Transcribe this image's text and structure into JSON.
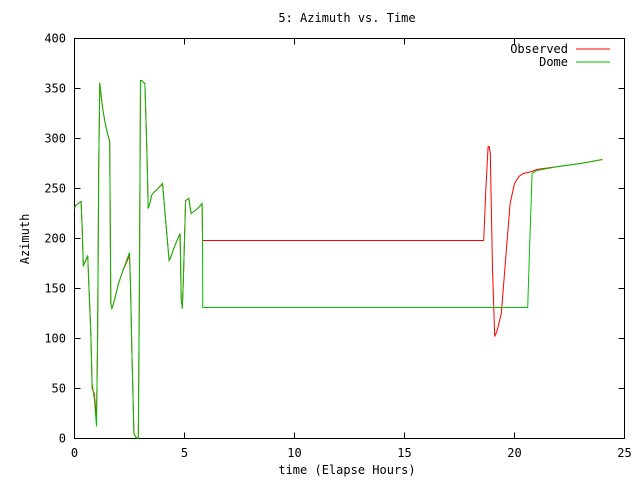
{
  "chart_data": {
    "type": "line",
    "title": "5: Azimuth vs. Time",
    "xlabel": "time (Elapse Hours)",
    "ylabel": "Azimuth",
    "xlim": [
      0,
      25
    ],
    "ylim": [
      0,
      400
    ],
    "xticks": [
      0,
      5,
      10,
      15,
      20,
      25
    ],
    "yticks": [
      0,
      50,
      100,
      150,
      200,
      250,
      300,
      350,
      400
    ],
    "grid": false,
    "legend_position": "top-right",
    "series": [
      {
        "name": "Observed",
        "color": "#ff0000",
        "x": [
          0.0,
          0.05,
          0.3,
          0.35,
          0.4,
          0.45,
          0.6,
          0.75,
          0.8,
          0.9,
          1.0,
          1.05,
          1.1,
          1.15,
          1.2,
          1.3,
          1.4,
          1.5,
          1.6,
          1.65,
          1.7,
          1.8,
          2.0,
          2.2,
          2.5,
          2.55,
          2.6,
          2.7,
          2.75,
          2.8,
          2.9,
          2.95,
          3.0,
          3.05,
          3.1,
          3.2,
          3.3,
          3.35,
          3.45,
          3.5,
          3.6,
          3.8,
          4.0,
          4.3,
          4.35,
          4.4,
          4.6,
          4.8,
          4.85,
          4.9,
          4.95,
          5.05,
          5.2,
          5.3,
          5.6,
          5.8,
          5.82,
          5.83,
          6.0,
          10.0,
          15.0,
          18.5,
          18.6,
          18.7,
          18.8,
          18.85,
          18.9,
          19.0,
          19.1,
          19.2,
          19.4,
          19.6,
          19.8,
          20.0,
          20.2,
          20.4,
          20.6,
          20.8,
          21.0,
          22.0,
          23.0,
          24.0
        ],
        "y": [
          230,
          233,
          237,
          210,
          173,
          175,
          183,
          100,
          50,
          45,
          20,
          100,
          270,
          355,
          345,
          327,
          315,
          305,
          297,
          135,
          130,
          137,
          155,
          168,
          183,
          150,
          95,
          5,
          3,
          1,
          0,
          150,
          358,
          358,
          357,
          355,
          280,
          230,
          237,
          243,
          246,
          250,
          255,
          178,
          180,
          183,
          195,
          205,
          140,
          130,
          160,
          238,
          240,
          225,
          230,
          235,
          200,
          198,
          198,
          198,
          198,
          198,
          198,
          250,
          292,
          292,
          285,
          170,
          102,
          107,
          125,
          180,
          235,
          255,
          262,
          265,
          266,
          267,
          269,
          272,
          275,
          279
        ]
      },
      {
        "name": "Dome",
        "color": "#00c000",
        "x": [
          0.0,
          0.05,
          0.3,
          0.35,
          0.4,
          0.45,
          0.6,
          0.75,
          0.8,
          0.9,
          1.0,
          1.05,
          1.1,
          1.15,
          1.2,
          1.3,
          1.4,
          1.5,
          1.6,
          1.65,
          1.7,
          1.8,
          2.0,
          2.2,
          2.5,
          2.55,
          2.6,
          2.7,
          2.75,
          2.8,
          2.9,
          2.95,
          3.0,
          3.05,
          3.1,
          3.2,
          3.3,
          3.35,
          3.45,
          3.5,
          3.6,
          3.8,
          4.0,
          4.3,
          4.35,
          4.4,
          4.6,
          4.8,
          4.85,
          4.9,
          4.95,
          5.05,
          5.2,
          5.3,
          5.6,
          5.8,
          5.82,
          5.83,
          6.0,
          10.0,
          15.0,
          18.5,
          19.0,
          19.5,
          20.0,
          20.5,
          20.6,
          20.7,
          20.8,
          21.0,
          22.0,
          23.0,
          24.0
        ],
        "y": [
          230,
          233,
          237,
          210,
          173,
          175,
          183,
          100,
          55,
          40,
          12,
          100,
          270,
          356,
          345,
          327,
          315,
          305,
          297,
          135,
          130,
          137,
          155,
          168,
          186,
          150,
          95,
          5,
          3,
          1,
          0,
          150,
          358,
          358,
          357,
          355,
          280,
          230,
          237,
          243,
          246,
          250,
          255,
          178,
          180,
          183,
          195,
          205,
          140,
          130,
          160,
          238,
          240,
          225,
          230,
          235,
          200,
          131,
          131,
          131,
          131,
          131,
          131,
          131,
          131,
          131,
          131,
          200,
          265,
          268,
          272,
          275,
          279
        ]
      }
    ]
  }
}
